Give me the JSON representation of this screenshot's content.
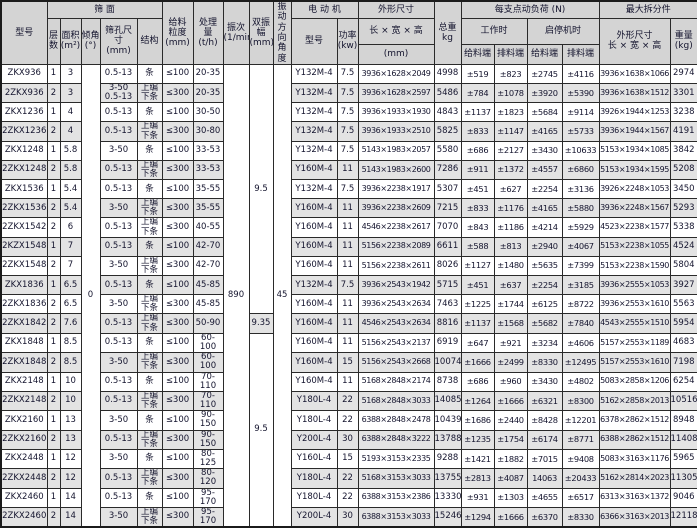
{
  "table": {
    "header": {
      "model": "型号",
      "screen_group": "筛  面",
      "layers": "层\n数",
      "area": "面积\n(m²)",
      "incline_angle": "倾角\n(°)",
      "aperture": "筛孔尺\n寸\n(mm)",
      "structure": "结构",
      "feed_size": "给料\n粒度\n(mm)",
      "capacity": "处理\n量\n(t/h)",
      "frequency": "振次\n(1/min)",
      "amplitude": "双振\n幅\n(mm)",
      "direction_angle": "振动\n方向\n角度",
      "motor_group": "电 动 机",
      "motor_model": "型号",
      "motor_power": "功率\n(kw)",
      "dims_l1": "外形尺寸",
      "dims_l2": "长 × 宽 × 高",
      "dims_l3": "(mm)",
      "total_weight": "总重\nkg",
      "load_group": "每支点动负荷 (N)",
      "work_group": "工作时",
      "start_group": "启停机时",
      "work_feed_end": "给料端",
      "work_discharge_end": "排料端",
      "start_feed_end": "给料端",
      "start_discharge_end": "排料端",
      "max_part_group": "最大拆分件",
      "part_dims": "外形尺寸\n长 × 宽 × 高",
      "part_weight": "重量\n(kg)"
    },
    "merged": {
      "incline_angle": "0",
      "frequency": "890",
      "direction_angle": "45",
      "amplitude": [
        {
          "value": "9.5",
          "rows": 13
        },
        {
          "value": "9.35",
          "rows": 1
        },
        {
          "value": "9.5",
          "rows": 10
        }
      ]
    },
    "rows": [
      [
        "ZKX936",
        "1",
        "3",
        "0.5-13",
        "条",
        "≤100",
        "20-35",
        "Y132M-4",
        "7.5",
        "3936×1628×2049",
        "4998",
        "±519",
        "±823",
        "±2745",
        "±4116",
        "3936×1638×1066",
        "2974"
      ],
      [
        "2ZKX936",
        "2",
        "3",
        "3-50\n0.5-13",
        "上编\n下条",
        "≤300",
        "20-35",
        "Y132M-4",
        "7.5",
        "3936×1628×2597",
        "5486",
        "±784",
        "±1078",
        "±3920",
        "±5390",
        "3936×1638×1512",
        "3301"
      ],
      [
        "ZKX1236",
        "1",
        "4",
        "0.5-13",
        "条",
        "≤100",
        "30-50",
        "Y132M-4",
        "7.5",
        "3936×1933×1930",
        "4843",
        "±1137",
        "±1823",
        "±5684",
        "±9114",
        "3926×1944×1253",
        "3238"
      ],
      [
        "2ZKX1236",
        "2",
        "4",
        "0.5-13",
        "上编\n下条",
        "≤300",
        "30-80",
        "Y132M-4",
        "7.5",
        "3936×1933×2510",
        "5825",
        "±833",
        "±1147",
        "±4165",
        "±5733",
        "3936×1944×1567",
        "4191"
      ],
      [
        "ZKX1248",
        "1",
        "5.8",
        "3-50",
        "条",
        "≤100",
        "33-53",
        "Y132M-4",
        "7.5",
        "5143×1983×2057",
        "5580",
        "±686",
        "±2127",
        "±3430",
        "±10633",
        "5153×1934×1085",
        "3842"
      ],
      [
        "2ZKX1248",
        "2",
        "5.8",
        "0.5-13",
        "上编\n下条",
        "≤300",
        "33-53",
        "Y160M-4",
        "11",
        "5143×1983×2600",
        "7286",
        "±911",
        "±1372",
        "±4557",
        "±6860",
        "5153×1934×1595",
        "5208"
      ],
      [
        "ZKX1536",
        "1",
        "5.4",
        "0.5-13",
        "条",
        "≤100",
        "35-55",
        "Y132M-4",
        "7.5",
        "3936×2238×1917",
        "5307",
        "±451",
        "±627",
        "±2254",
        "±3136",
        "3926×2248×1053",
        "3450"
      ],
      [
        "2ZKX1536",
        "2",
        "5.4",
        "3-50",
        "上编\n下条",
        "≤300",
        "35-55",
        "Y160M-4",
        "11",
        "3936×2238×2609",
        "7215",
        "±833",
        "±1176",
        "±4165",
        "±5880",
        "3936×2248×1567",
        "5293"
      ],
      [
        "2ZKX1542",
        "2",
        "6",
        "0.5-13",
        "上编\n下条",
        "≤300",
        "40-55",
        "Y160M-4",
        "11",
        "4546×2238×2617",
        "7070",
        "±843",
        "±1186",
        "±4214",
        "±5929",
        "4523×2238×1577",
        "5338"
      ],
      [
        "2KZX1548",
        "1",
        "7",
        "0.5-13",
        "条",
        "≤100",
        "42-70",
        "Y160M-4",
        "11",
        "5156×2238×2089",
        "6611",
        "±588",
        "±813",
        "±2940",
        "±4067",
        "5153×2238×1055",
        "4524"
      ],
      [
        "2ZKX1548",
        "2",
        "7",
        "3-50",
        "上编\n下条",
        "≤300",
        "42-70",
        "Y160M-4",
        "11",
        "5156×2238×2611",
        "8026",
        "±1127",
        "±1480",
        "±5635",
        "±7399",
        "5153×2238×1590",
        "5804"
      ],
      [
        "ZKX1836",
        "1",
        "6.5",
        "0.5-13",
        "条",
        "≤100",
        "45-85",
        "Y132M-4",
        "7.5",
        "3936×2543×1942",
        "5715",
        "±451",
        "±637",
        "±2254",
        "±3185",
        "3936×2555×1053",
        "3927"
      ],
      [
        "2ZKX1836",
        "2",
        "6.5",
        "3-50",
        "上编\n下条",
        "≤300",
        "45-85",
        "Y160M-4",
        "11",
        "3936×2543×2634",
        "7463",
        "±1225",
        "±1744",
        "±6125",
        "±8722",
        "3936×2553×1610",
        "5563"
      ],
      [
        "2ZKX1842",
        "2",
        "7.6",
        "0.5-13",
        "上编\n下条",
        "≤300",
        "50-90",
        "Y160M-4",
        "11",
        "4546×2543×2634",
        "8816",
        "±1137",
        "±1568",
        "±5682",
        "±7840",
        "4543×2555×1510",
        "5954"
      ],
      [
        "ZKX1848",
        "1",
        "8.5",
        "0.5-13",
        "条",
        "≤100",
        "60-100",
        "Y160M-4",
        "11",
        "5156×2543×2137",
        "6919",
        "±647",
        "±921",
        "±3234",
        "±4606",
        "5157×2553×1189",
        "4683"
      ],
      [
        "2ZKX1848",
        "2",
        "8.5",
        "3-50",
        "上编\n下条",
        "≤300",
        "60-100",
        "Y160M-4",
        "15",
        "5156×2543×2668",
        "10074",
        "±1666",
        "±2499",
        "±8330",
        "±12495",
        "5157×2553×1610",
        "7198"
      ],
      [
        "ZKX2148",
        "1",
        "10",
        "0.5-13",
        "条",
        "≤100",
        "70-110",
        "Y160M-4",
        "11",
        "5168×2848×2174",
        "8738",
        "±686",
        "±960",
        "±3430",
        "±4802",
        "5083×2858×1206",
        "6254"
      ],
      [
        "2ZKX2148",
        "2",
        "10",
        "0.5-13",
        "上编\n下条",
        "≤300",
        "70-110",
        "Y180L-4",
        "22",
        "5168×2848×3033",
        "14085",
        "±1264",
        "±1666",
        "±6321",
        "±8300",
        "5162×2858×2013",
        "10516"
      ],
      [
        "ZKX2160",
        "1",
        "13",
        "3-50",
        "条",
        "≤100",
        "90-150",
        "Y180L-4",
        "22",
        "6388×2848×2478",
        "10439",
        "±1686",
        "±2440",
        "±8428",
        "±12201",
        "6378×2862×1512",
        "8948"
      ],
      [
        "2ZKX2160",
        "2",
        "13",
        "0.5-13",
        "上编\n下条",
        "≤300",
        "90-150",
        "Y200L-4",
        "30",
        "6388×2848×3222",
        "13788",
        "±1235",
        "±1754",
        "±6174",
        "±8771",
        "6388×2862×1512",
        "11408"
      ],
      [
        "ZKX2448",
        "1",
        "12",
        "3-50",
        "条",
        "≤100",
        "80-125",
        "Y160L-4",
        "15",
        "5193×3153×2335",
        "9288",
        "±1421",
        "±1882",
        "±7015",
        "±9408",
        "5083×3163×1176",
        "5965"
      ],
      [
        "2ZKX2448",
        "2",
        "12",
        "0.5-13",
        "上编\n下条",
        "≤300",
        "80-120",
        "Y180L-4",
        "22",
        "5168×3153×3033",
        "13755",
        "±2813",
        "±4087",
        "14063",
        "±20433",
        "5162×2814×2023",
        "11305"
      ],
      [
        "ZKX2460",
        "1",
        "14",
        "0.5-13",
        "条",
        "≤100",
        "95-170",
        "Y180L-4",
        "22",
        "6388×3153×2386",
        "13330",
        "±931",
        "±1303",
        "±4655",
        "±6517",
        "6313×3163×1372",
        "9046"
      ],
      [
        "2ZKX2460",
        "2",
        "14",
        "3-50",
        "上编\n下条",
        "≤300",
        "95-170",
        "Y200L-4",
        "30",
        "6388×3153×3033",
        "15246",
        "±1294",
        "±1666",
        "±6370",
        "±8330",
        "6366×3163×2013",
        "12118"
      ]
    ]
  },
  "colors": {
    "header_bg": "#d4d4d4",
    "zebra_bg": "#e3e3e3",
    "border": "#2a2a2a",
    "text": "#14142e"
  }
}
